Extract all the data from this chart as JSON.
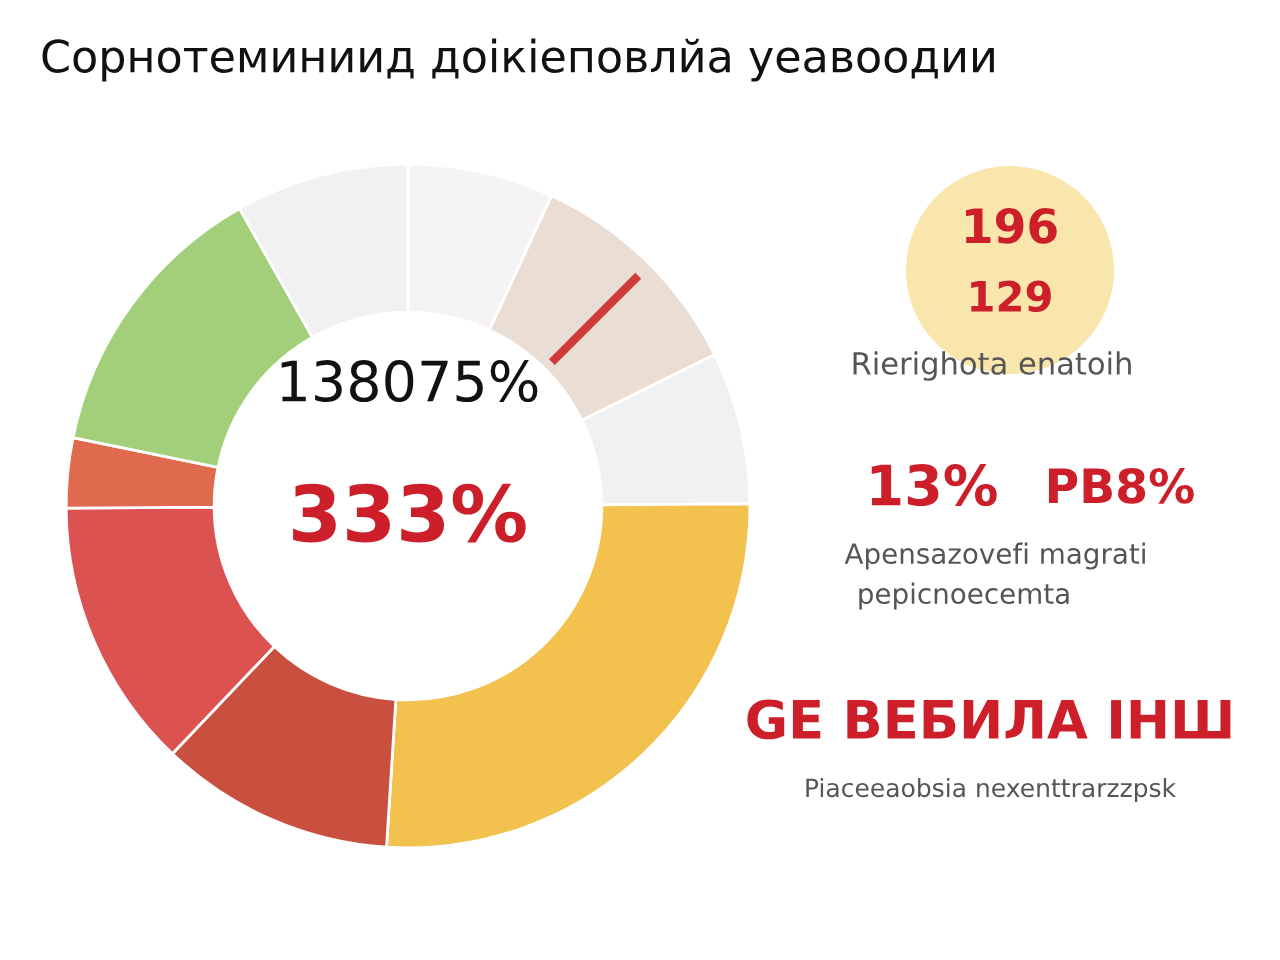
{
  "chart_data": {
    "type": "donut",
    "title": "Сорнотеминиид доікіеповлйа уеавоодии",
    "categories": [
      null,
      null,
      null,
      null,
      null,
      null,
      null,
      null,
      null
    ],
    "values": [
      6.9,
      10.8,
      7.2,
      26.1,
      11.1,
      12.8,
      3.3,
      13.6,
      8.2
    ],
    "colors": [
      "#f5f3f3",
      "#e9ddd4",
      "#f2f1f1",
      "#f2c14e",
      "#c9503f",
      "#dc5250",
      "#df6a4e",
      "#a3cf7a",
      "#f2f1f1"
    ],
    "annotations": [
      "138075%",
      "333%",
      "196",
      "129",
      "Rierighota enatoih",
      "13%",
      "РВ8%",
      "Apensazovefi magrati",
      "pepicnoecemta",
      "GE ВЕБИЛА IНШ",
      "Piaceeaobsia nexenttrarzzpsk"
    ],
    "legend": false
  }
}
